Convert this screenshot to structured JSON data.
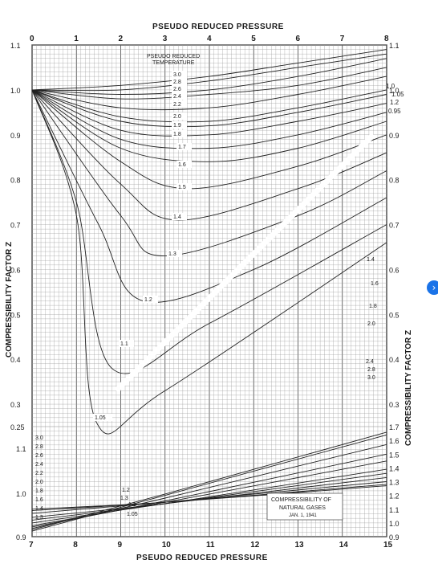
{
  "chart_data": [
    {
      "type": "line",
      "title": "PSEUDO REDUCED PRESSURE",
      "xlabel": "PSEUDO REDUCED PRESSURE",
      "ylabel_left": "COMPRESSIBILITY FACTOR Z",
      "ylabel_right": "COMPRESSIBILITY FACTOR Z",
      "xlim": [
        0,
        8
      ],
      "ylim": [
        0.25,
        1.1
      ],
      "x_ticks": [
        "0",
        "1",
        "2",
        "3",
        "4",
        "5",
        "6",
        "7",
        "8"
      ],
      "y_ticks_left": [
        "1.1",
        "1.0",
        "0.9",
        "0.8",
        "0.7",
        "0.6",
        "0.5",
        "0.4",
        "0.3",
        "0.25"
      ],
      "y_ticks_right": [
        "1.1",
        "1.0",
        "0.9",
        "0.8",
        "0.7",
        "0.6",
        "0.5",
        "0.4",
        "0.3"
      ],
      "legend_title": "PSEUDO REDUCED TEMPERATURE",
      "series": [
        {
          "name": "3.0",
          "points": [
            [
              0,
              1.0
            ],
            [
              2,
              1.01
            ],
            [
              4,
              1.03
            ],
            [
              6,
              1.06
            ],
            [
              8,
              1.09
            ]
          ]
        },
        {
          "name": "2.8",
          "points": [
            [
              0,
              1.0
            ],
            [
              2,
              1.0
            ],
            [
              4,
              1.02
            ],
            [
              6,
              1.05
            ],
            [
              8,
              1.08
            ]
          ]
        },
        {
          "name": "2.6",
          "points": [
            [
              0,
              1.0
            ],
            [
              2,
              0.99
            ],
            [
              4,
              1.0
            ],
            [
              6,
              1.03
            ],
            [
              8,
              1.07
            ]
          ]
        },
        {
          "name": "2.4",
          "points": [
            [
              0,
              1.0
            ],
            [
              2,
              0.98
            ],
            [
              4,
              0.99
            ],
            [
              6,
              1.01
            ],
            [
              8,
              1.05
            ]
          ]
        },
        {
          "name": "2.2",
          "points": [
            [
              0,
              1.0
            ],
            [
              2,
              0.96
            ],
            [
              4,
              0.96
            ],
            [
              6,
              0.99
            ],
            [
              8,
              1.03
            ]
          ]
        },
        {
          "name": "2.0",
          "points": [
            [
              0,
              1.0
            ],
            [
              2,
              0.94
            ],
            [
              4,
              0.93
            ],
            [
              6,
              0.96
            ],
            [
              8,
              1.0
            ]
          ]
        },
        {
          "name": "1.9",
          "points": [
            [
              0,
              1.0
            ],
            [
              2,
              0.93
            ],
            [
              4,
              0.92
            ],
            [
              6,
              0.95
            ],
            [
              8,
              0.99
            ]
          ]
        },
        {
          "name": "1.8",
          "points": [
            [
              0,
              1.0
            ],
            [
              2,
              0.91
            ],
            [
              4,
              0.9
            ],
            [
              6,
              0.93
            ],
            [
              8,
              0.97
            ]
          ]
        },
        {
          "name": "1.7",
          "points": [
            [
              0,
              1.0
            ],
            [
              2,
              0.89
            ],
            [
              4,
              0.87
            ],
            [
              6,
              0.9
            ],
            [
              8,
              0.95
            ]
          ]
        },
        {
          "name": "1.6",
          "points": [
            [
              0,
              1.0
            ],
            [
              2,
              0.87
            ],
            [
              4,
              0.84
            ],
            [
              6,
              0.87
            ],
            [
              8,
              0.93
            ]
          ]
        },
        {
          "name": "1.5",
          "points": [
            [
              0,
              1.0
            ],
            [
              2,
              0.84
            ],
            [
              3.5,
              0.78
            ],
            [
              6,
              0.83
            ],
            [
              8,
              0.9
            ]
          ]
        },
        {
          "name": "1.4",
          "points": [
            [
              0,
              1.0
            ],
            [
              2,
              0.79
            ],
            [
              3.3,
              0.71
            ],
            [
              6,
              0.78
            ],
            [
              8,
              0.86
            ]
          ]
        },
        {
          "name": "1.3",
          "points": [
            [
              0,
              1.0
            ],
            [
              2,
              0.72
            ],
            [
              3.0,
              0.63
            ],
            [
              6,
              0.72
            ],
            [
              8,
              0.82
            ]
          ]
        },
        {
          "name": "1.2",
          "points": [
            [
              0,
              1.0
            ],
            [
              1.5,
              0.7
            ],
            [
              2.5,
              0.53
            ],
            [
              5,
              0.6
            ],
            [
              8,
              0.76
            ]
          ]
        },
        {
          "name": "1.1",
          "points": [
            [
              0,
              1.0
            ],
            [
              1,
              0.75
            ],
            [
              1.8,
              0.38
            ],
            [
              4,
              0.48
            ],
            [
              8,
              0.7
            ]
          ]
        },
        {
          "name": "1.05",
          "points": [
            [
              0,
              1.0
            ],
            [
              1,
              0.72
            ],
            [
              1.45,
              0.26
            ],
            [
              3,
              0.33
            ],
            [
              8,
              0.66
            ]
          ]
        }
      ]
    },
    {
      "type": "line",
      "xlabel": "PSEUDO REDUCED PRESSURE",
      "xlim": [
        7,
        15
      ],
      "ylim": [
        0.9,
        1.7
      ],
      "x_ticks": [
        "7",
        "8",
        "9",
        "10",
        "11",
        "12",
        "13",
        "14",
        "15"
      ],
      "y_ticks_right": [
        "1.7",
        "1.6",
        "1.5",
        "1.4",
        "1.3",
        "1.2",
        "1.1",
        "1.0",
        "0.9"
      ],
      "annotations": [
        "COMPRESSIBILITY OF",
        "NATURAL GASES",
        "JAN. 1, 1941"
      ],
      "series": [
        {
          "name": "1.05",
          "points": [
            [
              7,
              0.95
            ],
            [
              10,
              1.21
            ],
            [
              15,
              1.66
            ]
          ]
        },
        {
          "name": "1.1",
          "points": [
            [
              7,
              0.94
            ],
            [
              10,
              1.2
            ],
            [
              15,
              1.64
            ]
          ]
        },
        {
          "name": "1.2",
          "points": [
            [
              7,
              0.96
            ],
            [
              10,
              1.18
            ],
            [
              15,
              1.57
            ]
          ]
        },
        {
          "name": "1.3",
          "points": [
            [
              7,
              0.97
            ],
            [
              10,
              1.16
            ],
            [
              15,
              1.5
            ]
          ]
        },
        {
          "name": "1.4",
          "points": [
            [
              7,
              0.98
            ],
            [
              10,
              1.15
            ],
            [
              15,
              1.45
            ]
          ]
        },
        {
          "name": "1.6",
          "points": [
            [
              7,
              1.0
            ],
            [
              10,
              1.14
            ],
            [
              15,
              1.39
            ]
          ]
        },
        {
          "name": "1.8",
          "points": [
            [
              7,
              1.02
            ],
            [
              10,
              1.14
            ],
            [
              15,
              1.36
            ]
          ]
        },
        {
          "name": "2.0",
          "points": [
            [
              7,
              1.04
            ],
            [
              10,
              1.14
            ],
            [
              15,
              1.33
            ]
          ]
        },
        {
          "name": "2.4",
          "points": [
            [
              7,
              1.07
            ],
            [
              10,
              1.15
            ],
            [
              15,
              1.3
            ]
          ]
        },
        {
          "name": "2.8",
          "points": [
            [
              7,
              1.09
            ],
            [
              10,
              1.15
            ],
            [
              15,
              1.28
            ]
          ]
        },
        {
          "name": "3.0",
          "points": [
            [
              7,
              1.1
            ],
            [
              10,
              1.15
            ],
            [
              15,
              1.27
            ]
          ]
        }
      ]
    }
  ],
  "plot_labels_upper": [
    "3.0",
    "2.8",
    "2.6",
    "2.4",
    "2.2",
    "2.0",
    "1.9",
    "1.8",
    "1.7",
    "1.6",
    "1.5",
    "1.4",
    "1.3",
    "1.2",
    "1.1",
    "1.05"
  ],
  "right_top_labels": [
    "1.0",
    "1.05",
    "1.2",
    "0.95"
  ],
  "lower_left_labels": [
    "3.0",
    "2.8",
    "2.6",
    "2.4",
    "2.2",
    "2.0",
    "1.8",
    "1.6",
    "1.4",
    "1.3"
  ],
  "ui": {
    "scroll_icon": "chevron-right-icon",
    "accent": "#1a73e8"
  }
}
